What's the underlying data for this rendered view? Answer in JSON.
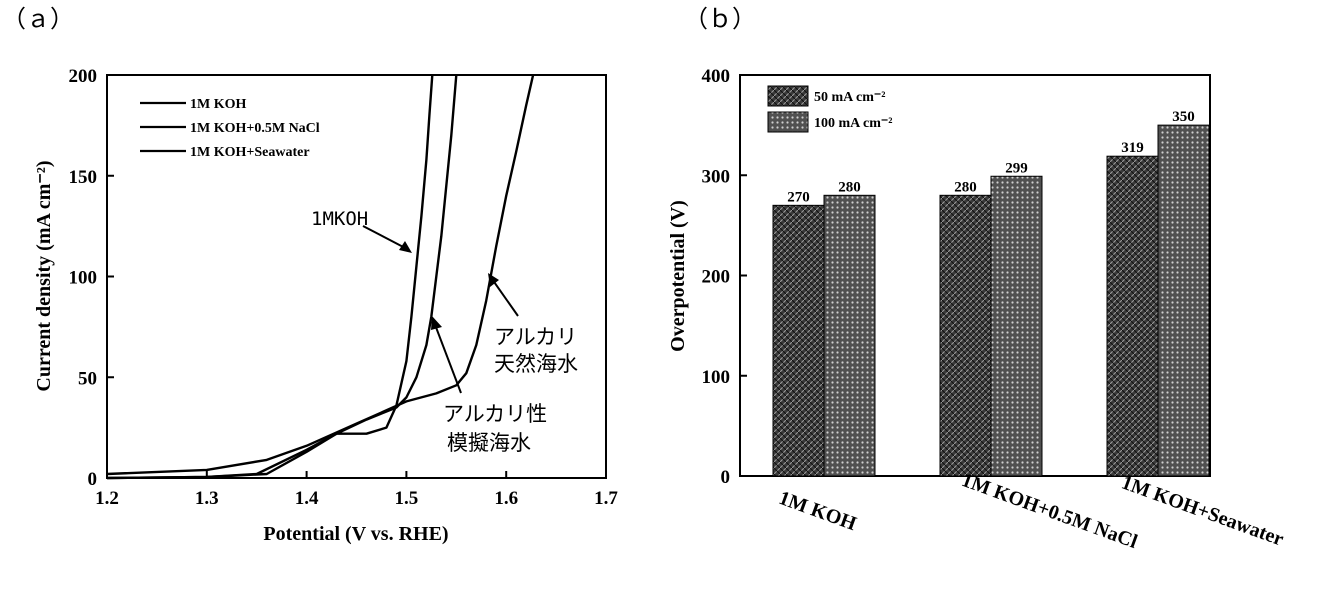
{
  "panel_a": {
    "panel_label": "（ａ）",
    "legend": [
      "1M KOH",
      "1M KOH+0.5M NaCl",
      "1M KOH+Seawater"
    ],
    "annotations": {
      "koh": "1MKOH",
      "sim_line1": "アルカリ性",
      "sim_line2": "模擬海水",
      "nat_line1": "アルカリ",
      "nat_line2": "天然海水"
    }
  },
  "panel_b": {
    "panel_label": "（ｂ）",
    "legend": [
      "50 mA cm⁻²",
      "100 mA cm⁻²"
    ]
  },
  "chart_data": [
    {
      "type": "line",
      "xlabel": "Potential (V vs. RHE)",
      "ylabel": "Current density (mA cm⁻²)",
      "xlim": [
        1.2,
        1.7
      ],
      "ylim": [
        0,
        200
      ],
      "xticks": [
        "1.2",
        "1.3",
        "1.4",
        "1.5",
        "1.6",
        "1.7"
      ],
      "yticks": [
        "0",
        "50",
        "100",
        "150",
        "200"
      ],
      "grid": false,
      "legend_position": "top-left",
      "series": [
        {
          "name": "1M KOH",
          "x": [
            1.2,
            1.3,
            1.36,
            1.4,
            1.43,
            1.46,
            1.48,
            1.49,
            1.5,
            1.505,
            1.51,
            1.515,
            1.52,
            1.523,
            1.526
          ],
          "y": [
            0,
            0.5,
            2,
            13,
            22,
            22,
            25,
            36,
            58,
            80,
            105,
            130,
            158,
            180,
            200
          ]
        },
        {
          "name": "1M KOH+0.5M NaCl",
          "x": [
            1.2,
            1.3,
            1.35,
            1.4,
            1.43,
            1.46,
            1.49,
            1.5,
            1.51,
            1.52,
            1.525,
            1.53,
            1.535,
            1.54,
            1.545,
            1.55
          ],
          "y": [
            0,
            0.5,
            2,
            14,
            22,
            29,
            35,
            40,
            50,
            66,
            80,
            100,
            120,
            145,
            170,
            200
          ]
        },
        {
          "name": "1M KOH+Seawater",
          "x": [
            1.2,
            1.3,
            1.36,
            1.4,
            1.45,
            1.5,
            1.53,
            1.55,
            1.56,
            1.57,
            1.58,
            1.59,
            1.6,
            1.61,
            1.62,
            1.627
          ],
          "y": [
            2,
            4,
            9,
            16,
            27,
            38,
            42,
            46,
            52,
            66,
            88,
            115,
            140,
            162,
            185,
            200
          ]
        }
      ]
    },
    {
      "type": "bar",
      "ylabel": "Overpotential (V)",
      "ylim": [
        0,
        400
      ],
      "yticks": [
        "0",
        "100",
        "200",
        "300",
        "400"
      ],
      "categories": [
        "1M KOH",
        "1M KOH+0.5M NaCl",
        "1M KOH+Seawater"
      ],
      "legend_position": "top-left",
      "series": [
        {
          "name": "50 mA cm⁻²",
          "values": [
            270,
            280,
            319
          ]
        },
        {
          "name": "100 mA cm⁻²",
          "values": [
            280,
            299,
            350
          ]
        }
      ]
    }
  ]
}
